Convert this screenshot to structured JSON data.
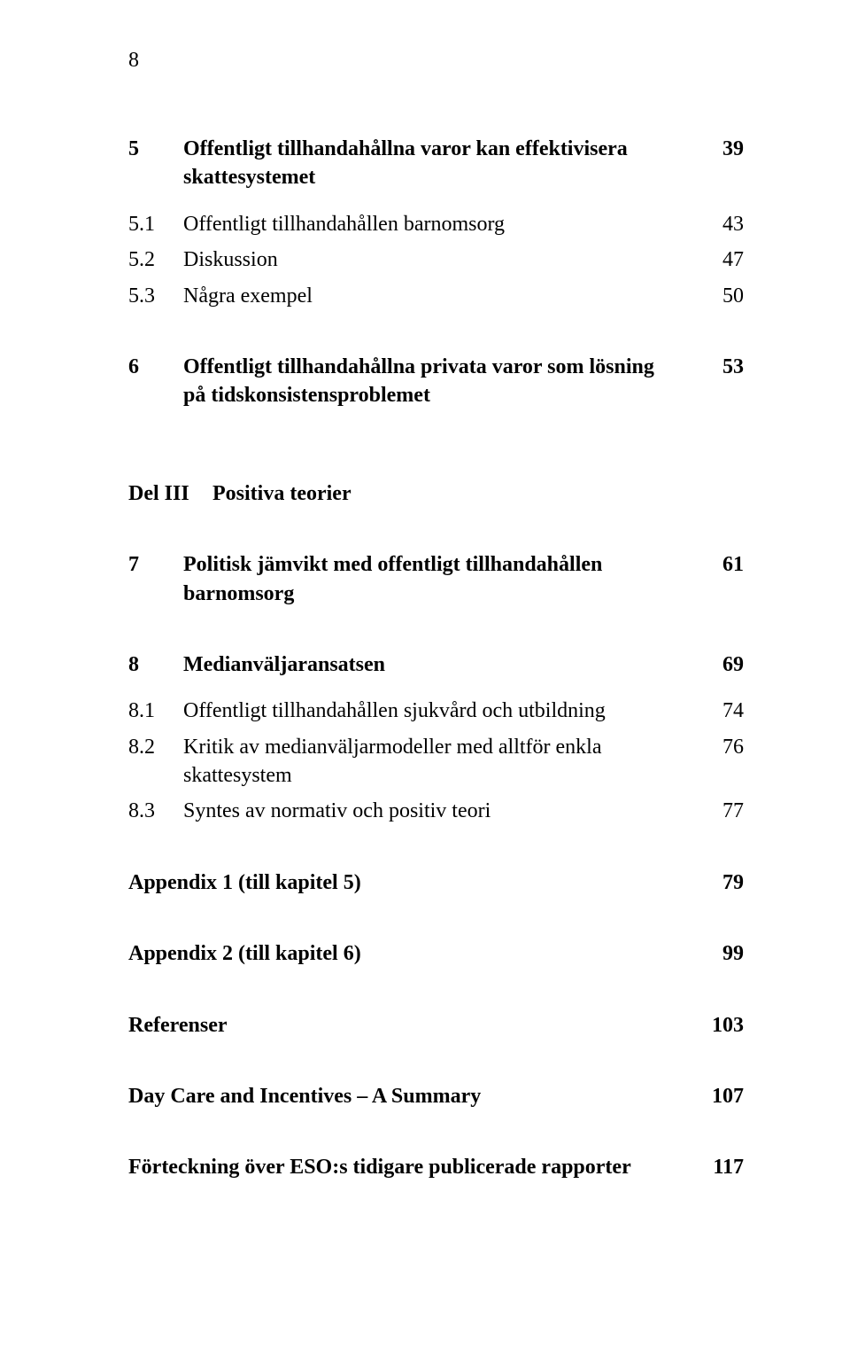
{
  "page_number": "8",
  "rows": [
    {
      "num": "5",
      "text": "Offentligt tillhandahållna varor kan effektivisera skattesystemet",
      "page": "39",
      "bold": true
    },
    {
      "gap": "sm"
    },
    {
      "num": "5.1",
      "text": "Offentligt tillhandahållen barnomsorg",
      "page": "43"
    },
    {
      "num": "5.2",
      "text": "Diskussion",
      "page": "47"
    },
    {
      "num": "5.3",
      "text": "Några exempel",
      "page": "50"
    },
    {
      "gap": "md"
    },
    {
      "num": "6",
      "text": "Offentligt tillhandahållna privata varor som lösning på tidskonsistensproblemet",
      "page": "53",
      "bold": true
    },
    {
      "gap": "lg"
    },
    {
      "num": "Del III",
      "text": "Positiva teorier",
      "page": "",
      "bold": true,
      "wide_num": true
    },
    {
      "gap": "md"
    },
    {
      "num": "7",
      "text": "Politisk jämvikt med offentligt tillhandahållen barnomsorg",
      "page": "61",
      "bold": true
    },
    {
      "gap": "md"
    },
    {
      "num": "8",
      "text": "Medianväljaransatsen",
      "page": "69",
      "bold": true
    },
    {
      "gap": "sm"
    },
    {
      "num": "8.1",
      "text": "Offentligt tillhandahållen sjukvård och utbildning",
      "page": "74",
      "hang": true
    },
    {
      "num": "8.2",
      "text": "Kritik av medianväljarmodeller med alltför enkla skattesystem",
      "page": "76",
      "hang": true
    },
    {
      "num": "8.3",
      "text": "Syntes av normativ och positiv teori",
      "page": "77"
    },
    {
      "gap": "md"
    },
    {
      "num": "",
      "text": "Appendix 1 (till kapitel 5)",
      "page": "79",
      "bold": true
    },
    {
      "gap": "md"
    },
    {
      "num": "",
      "text": "Appendix 2 (till kapitel 6)",
      "page": "99",
      "bold": true
    },
    {
      "gap": "md"
    },
    {
      "num": "",
      "text": "Referenser",
      "page": "103",
      "bold": true
    },
    {
      "gap": "md"
    },
    {
      "num": "",
      "text": "Day Care and Incentives – A Summary",
      "page": "107",
      "bold": true
    },
    {
      "gap": "md"
    },
    {
      "num": "",
      "text": "Förteckning över ESO:s tidigare publicerade rapporter",
      "page": "117",
      "bold": true
    }
  ]
}
